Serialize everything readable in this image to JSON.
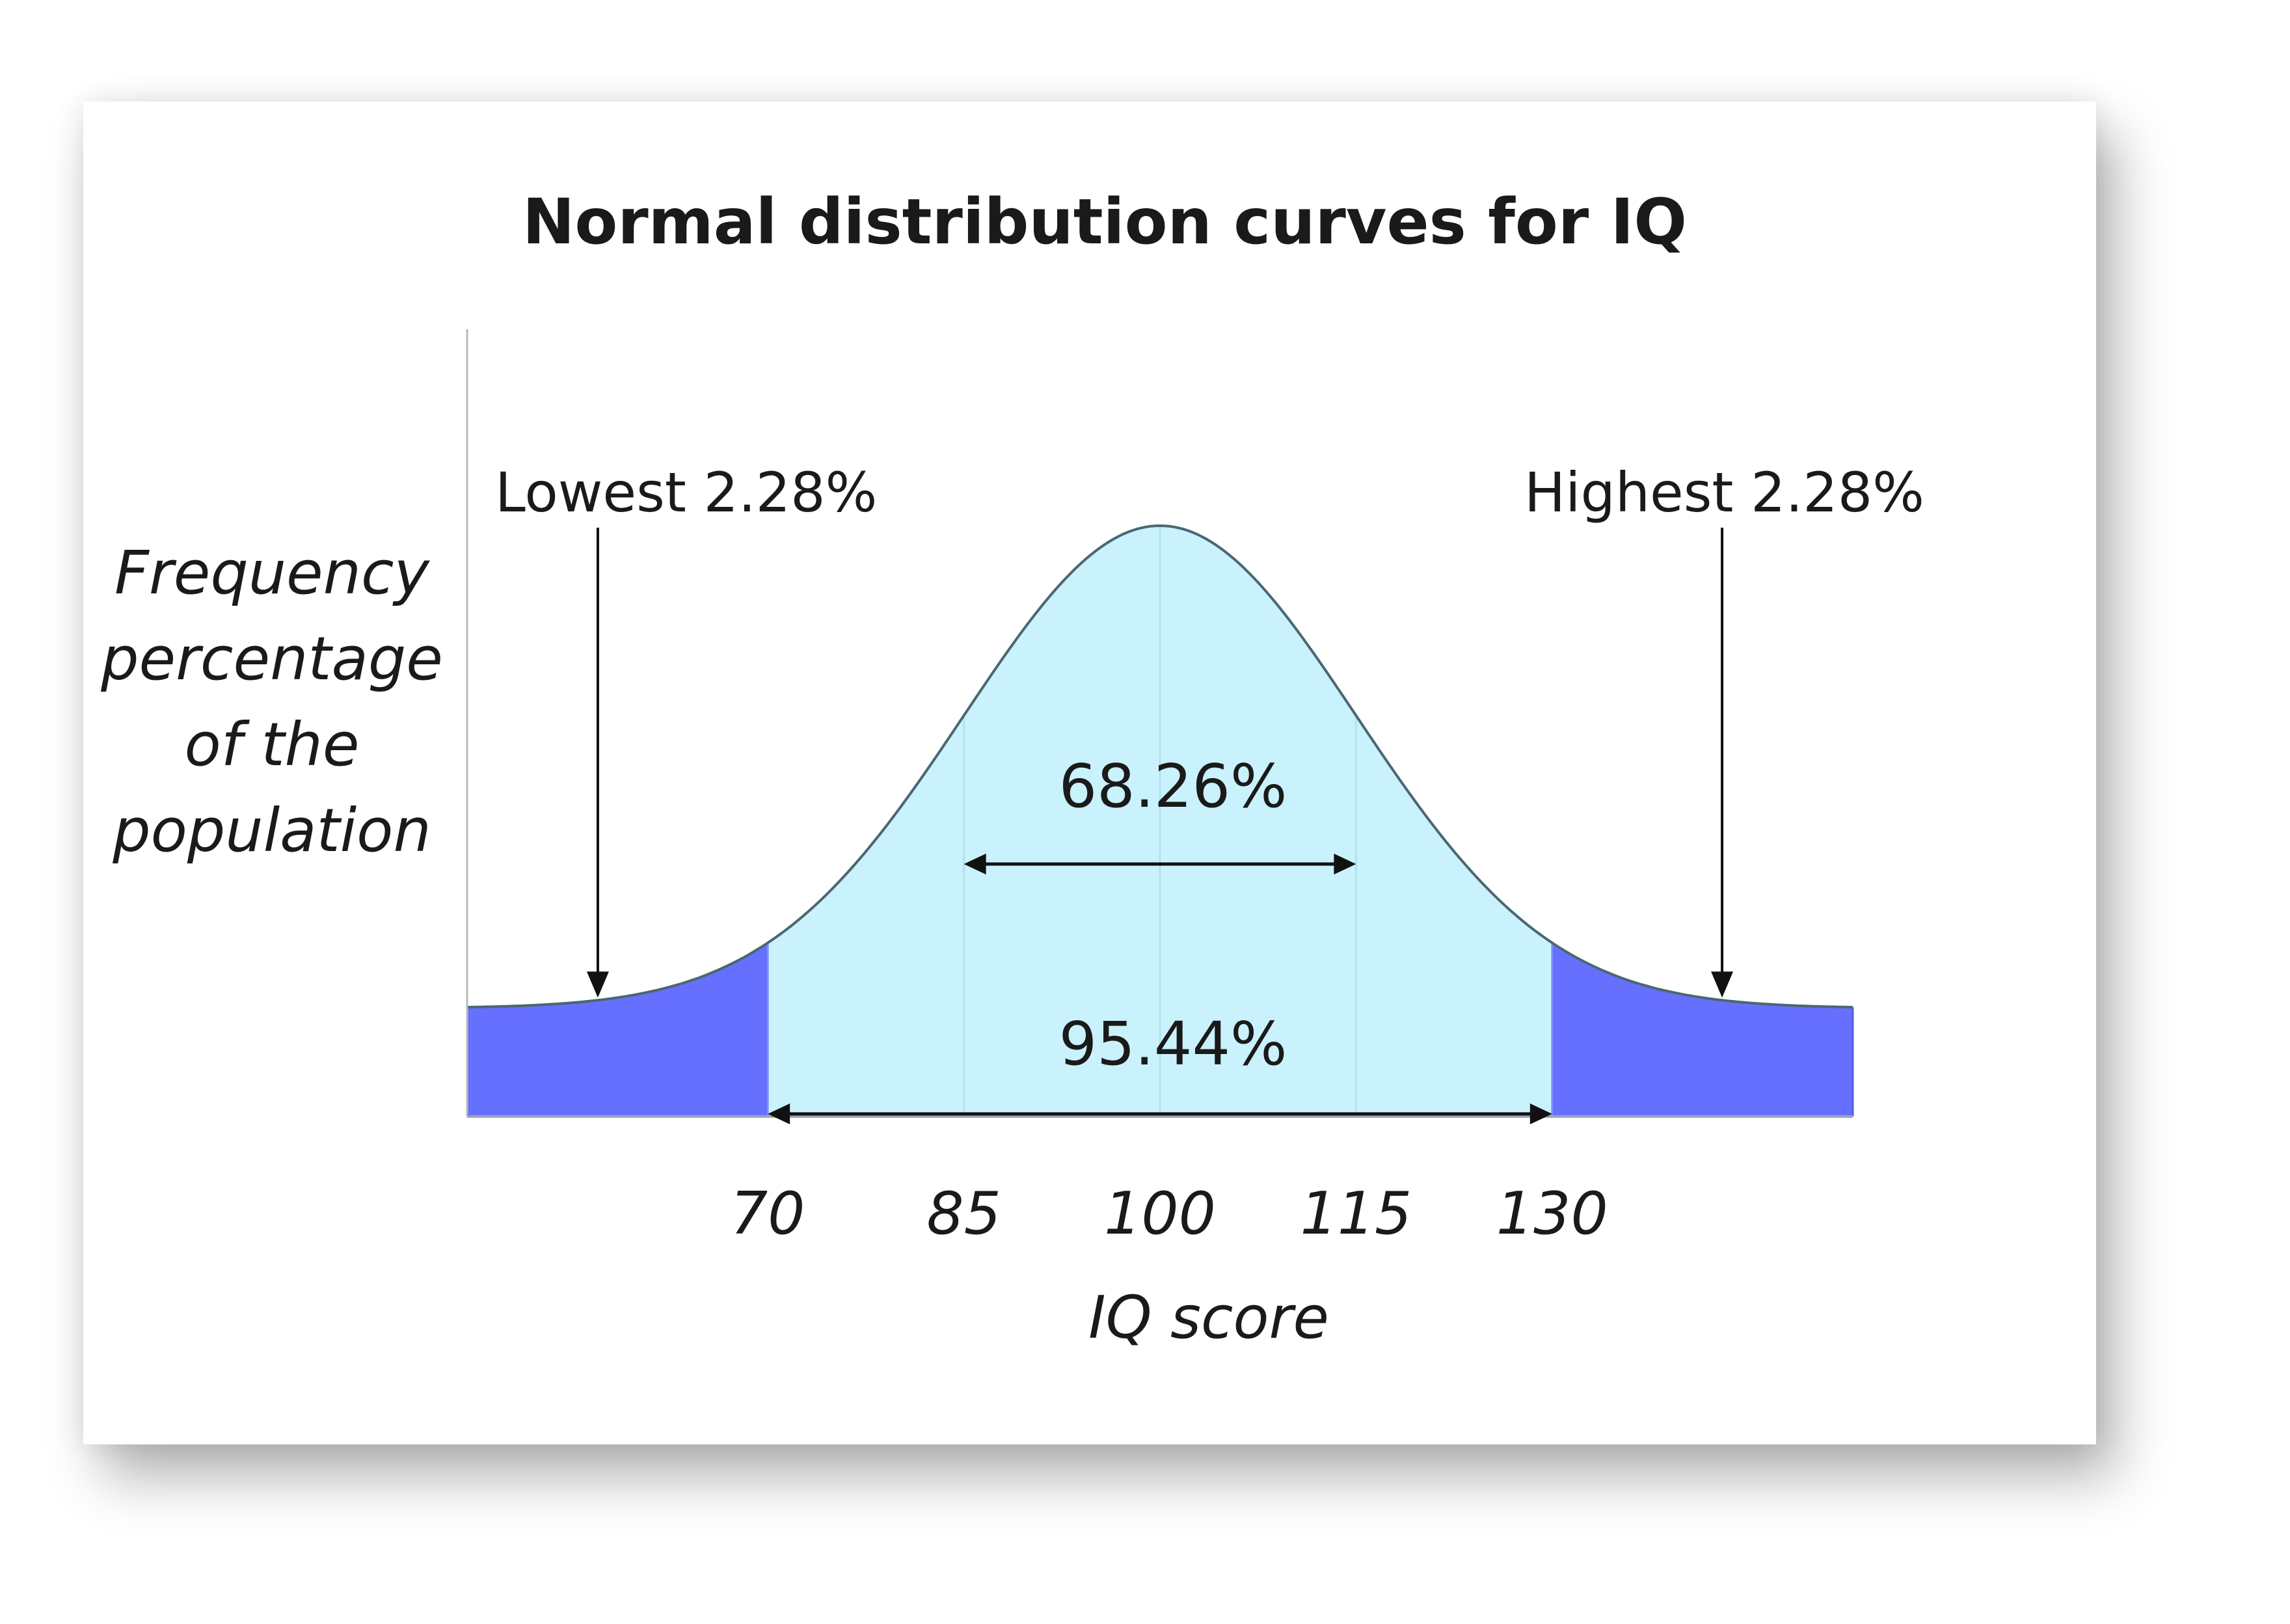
{
  "chart_data": {
    "type": "area",
    "title": "Normal distribution curves for IQ",
    "ylabel": [
      "Frequency",
      "percentage",
      "of the",
      "population"
    ],
    "xlabel": "IQ score",
    "distribution": {
      "mean": 100,
      "sd": 15
    },
    "xlim": [
      47,
      153
    ],
    "ticks": [
      70,
      85,
      100,
      115,
      130
    ],
    "regions": [
      {
        "from": 47,
        "to": 70,
        "color": "#6670ff"
      },
      {
        "from": 70,
        "to": 130,
        "color": "#c9f2fc"
      },
      {
        "from": 130,
        "to": 153,
        "color": "#6670ff"
      }
    ],
    "annotations": {
      "lowest": {
        "label": "Lowest 2.28%",
        "x": 57
      },
      "highest": {
        "label": "Highest 2.28%",
        "x": 143
      },
      "inner": {
        "label": "68.26%",
        "from": 85,
        "to": 115
      },
      "outer": {
        "label": "95.44%",
        "from": 70,
        "to": 130
      }
    },
    "grid": false
  }
}
